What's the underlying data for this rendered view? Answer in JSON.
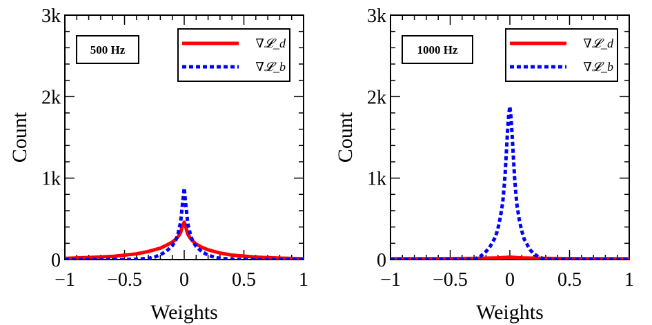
{
  "chart_data": [
    {
      "type": "line",
      "panel_label": "500 Hz",
      "xlabel": "Weights",
      "ylabel": "Count",
      "xlim": [
        -1,
        1
      ],
      "ylim": [
        0,
        3000
      ],
      "x_ticks": [
        -1,
        -0.5,
        0,
        0.5,
        1
      ],
      "x_tick_labels": [
        "−1",
        "−0.5",
        "0",
        "0.5",
        "1"
      ],
      "y_ticks": [
        0,
        1000,
        2000,
        3000
      ],
      "y_tick_labels": [
        "0",
        "1k",
        "2k",
        "3k"
      ],
      "legend_position": "top-right",
      "series": [
        {
          "name": "∇𝓛_d",
          "color": "#ff0000",
          "style": "solid",
          "x": [
            -1,
            -0.8,
            -0.6,
            -0.4,
            -0.3,
            -0.2,
            -0.15,
            -0.1,
            -0.07,
            -0.05,
            -0.03,
            -0.02,
            -0.01,
            0,
            0.01,
            0.02,
            0.03,
            0.05,
            0.07,
            0.1,
            0.15,
            0.2,
            0.3,
            0.4,
            0.6,
            0.8,
            1
          ],
          "y": [
            15,
            25,
            40,
            70,
            100,
            140,
            175,
            215,
            250,
            285,
            330,
            390,
            430,
            460,
            420,
            360,
            310,
            265,
            230,
            190,
            150,
            120,
            80,
            55,
            30,
            18,
            10
          ]
        },
        {
          "name": "∇𝓛_b",
          "color": "#0000ff",
          "style": "dotted",
          "x": [
            -1,
            -0.5,
            -0.4,
            -0.3,
            -0.25,
            -0.2,
            -0.15,
            -0.1,
            -0.07,
            -0.05,
            -0.03,
            -0.02,
            -0.01,
            0,
            0.01,
            0.02,
            0.03,
            0.05,
            0.07,
            0.1,
            0.15,
            0.2,
            0.25,
            0.3,
            0.4,
            0.5,
            1
          ],
          "y": [
            0,
            0,
            5,
            15,
            30,
            60,
            100,
            170,
            240,
            330,
            460,
            600,
            750,
            880,
            720,
            580,
            440,
            320,
            230,
            160,
            95,
            55,
            30,
            15,
            5,
            0,
            0
          ]
        }
      ]
    },
    {
      "type": "line",
      "panel_label": "1000 Hz",
      "xlabel": "Weights",
      "ylabel": "Count",
      "xlim": [
        -1,
        1
      ],
      "ylim": [
        0,
        3000
      ],
      "x_ticks": [
        -1,
        -0.5,
        0,
        0.5,
        1
      ],
      "x_tick_labels": [
        "−1",
        "−0.5",
        "0",
        "0.5",
        "1"
      ],
      "y_ticks": [
        0,
        1000,
        2000,
        3000
      ],
      "y_tick_labels": [
        "0",
        "1k",
        "2k",
        "3k"
      ],
      "legend_position": "top-right",
      "series": [
        {
          "name": "∇𝓛_d",
          "color": "#ff0000",
          "style": "solid",
          "x": [
            -1,
            -0.6,
            -0.3,
            -0.1,
            -0.05,
            0,
            0.05,
            0.1,
            0.3,
            0.6,
            1
          ],
          "y": [
            10,
            12,
            15,
            20,
            25,
            30,
            25,
            20,
            15,
            12,
            10
          ]
        },
        {
          "name": "∇𝓛_b",
          "color": "#0000ff",
          "style": "dotted",
          "x": [
            -1,
            -0.4,
            -0.3,
            -0.25,
            -0.2,
            -0.17,
            -0.15,
            -0.12,
            -0.1,
            -0.08,
            -0.06,
            -0.05,
            -0.04,
            -0.03,
            -0.02,
            -0.01,
            0,
            0.01,
            0.02,
            0.03,
            0.04,
            0.05,
            0.06,
            0.08,
            0.1,
            0.12,
            0.15,
            0.17,
            0.2,
            0.25,
            0.3,
            0.4,
            1
          ],
          "y": [
            0,
            0,
            5,
            35,
            100,
            150,
            200,
            280,
            380,
            520,
            700,
            860,
            1050,
            1300,
            1560,
            1780,
            1880,
            1740,
            1500,
            1240,
            1000,
            820,
            660,
            480,
            350,
            250,
            170,
            120,
            70,
            25,
            5,
            0,
            0
          ]
        }
      ]
    }
  ]
}
